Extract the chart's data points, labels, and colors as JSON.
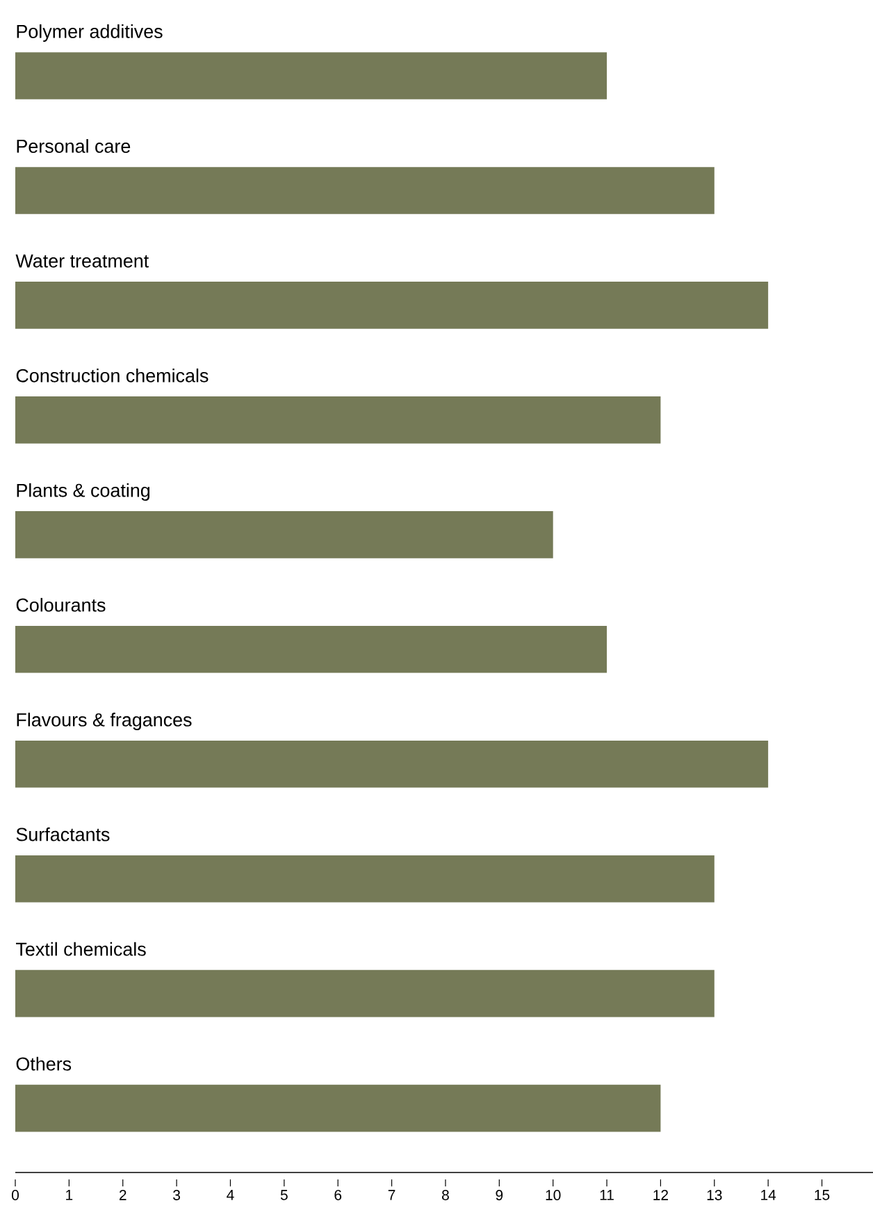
{
  "chart_data": {
    "type": "bar",
    "orientation": "horizontal",
    "categories": [
      "Polymer additives",
      "Personal care",
      "Water treatment",
      "Construction chemicals",
      "Plants & coating",
      "Colourants",
      "Flavours & fragances",
      "Surfactants",
      "Textil chemicals",
      "Others"
    ],
    "values": [
      11,
      13,
      14,
      12,
      10,
      11,
      14,
      13,
      13,
      12
    ],
    "color": "#757a57",
    "xlim": [
      0,
      15.95
    ],
    "xticks": [
      0,
      1,
      2,
      3,
      4,
      5,
      6,
      7,
      8,
      9,
      10,
      11,
      12,
      13,
      14,
      15
    ]
  }
}
